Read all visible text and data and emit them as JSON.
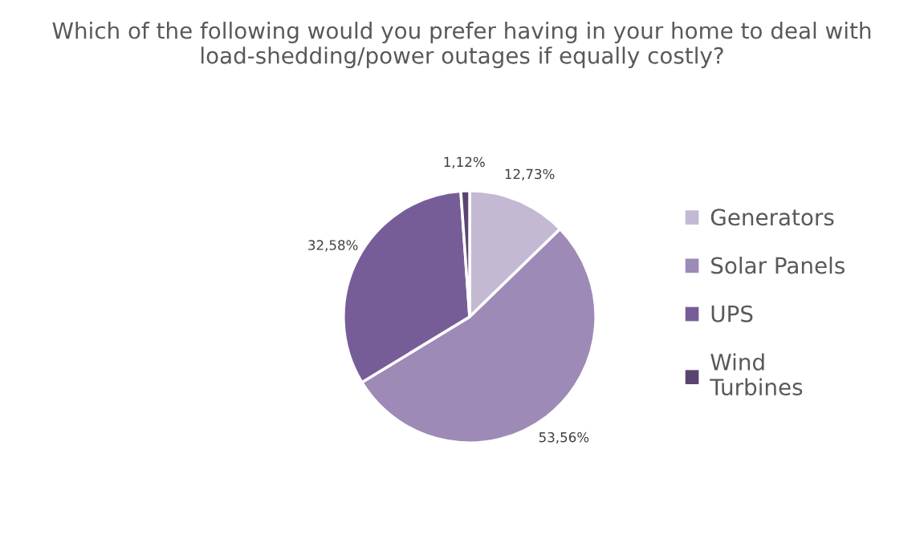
{
  "chart_data": {
    "type": "pie",
    "title": "Which of the following would you prefer having in your home to deal with load-shedding/power outages if equally costly?",
    "categories": [
      "Generators",
      "Solar Panels",
      "UPS",
      "Wind Turbines"
    ],
    "values": [
      12.73,
      53.56,
      32.58,
      1.12
    ],
    "value_labels": [
      "12,73%",
      "53,56%",
      "32,58%",
      "1,12%"
    ],
    "colors": [
      "#c4b9d3",
      "#9d8ab6",
      "#775d98",
      "#59456f"
    ],
    "legend": "right"
  }
}
